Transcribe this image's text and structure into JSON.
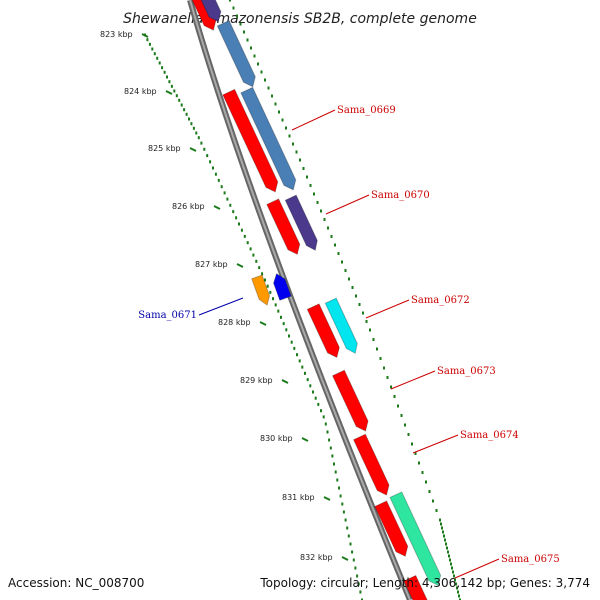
{
  "title": "Shewanella amazonensis SB2B, complete genome",
  "footer": {
    "accession": "Accession: NC_008700",
    "topology": "Topology: circular; Length: 4,306,142 bp; Genes: 3,774"
  },
  "ticks": [
    "823 kbp",
    "824 kbp",
    "825 kbp",
    "826 kbp",
    "827 kbp",
    "828 kbp",
    "829 kbp",
    "830 kbp",
    "831 kbp",
    "832 kbp"
  ],
  "gene_labels": {
    "Sama_0669": "Sama_0669",
    "Sama_0670": "Sama_0670",
    "Sama_0671": "Sama_0671",
    "Sama_0672": "Sama_0672",
    "Sama_0673": "Sama_0673",
    "Sama_0674": "Sama_0674",
    "Sama_0675": "Sama_0675"
  },
  "colors": {
    "cds": "#ff0000",
    "cds_edge": "#b00000",
    "backbone": "#888888",
    "ticks": "#1a7a1a",
    "label_red": "#cc0000",
    "label_blue": "#0000aa",
    "gene_blue": "#4a7fb5",
    "gene_purple": "#4b3a8c",
    "gene_cyan": "#00e5ee",
    "gene_green": "#2fe6a0",
    "gene_orange": "#ff9900",
    "gene_darkblue": "#0000ee"
  }
}
